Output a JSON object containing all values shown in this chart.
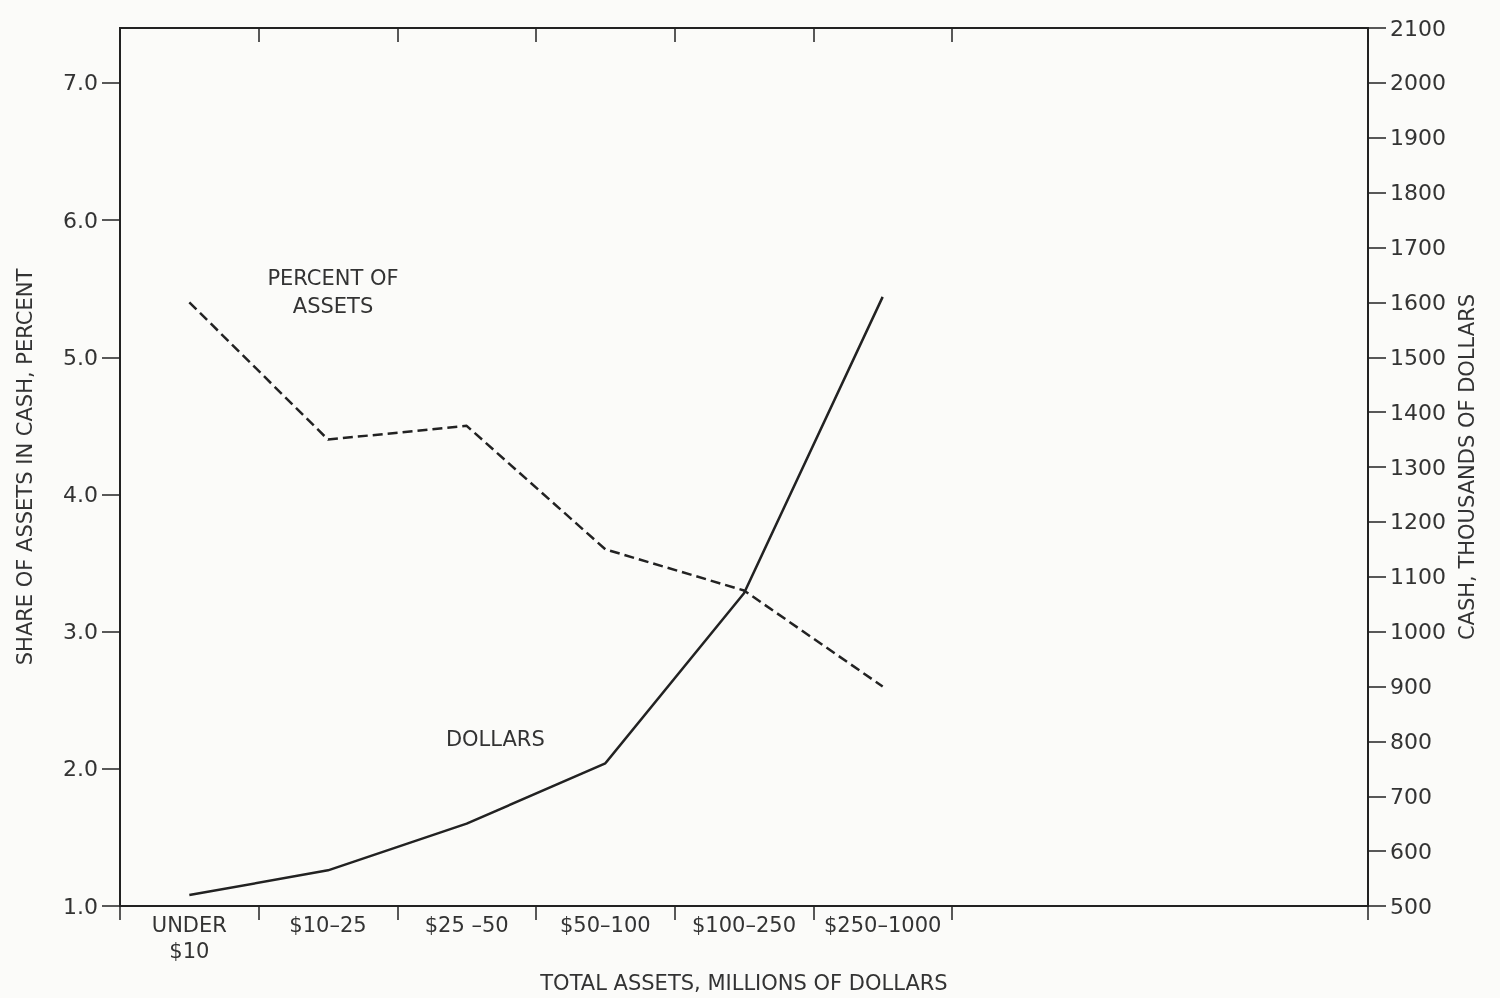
{
  "chart_data": {
    "type": "line",
    "xlabel": "TOTAL ASSETS, MILLIONS OF DOLLARS",
    "ylabel": "SHARE OF ASSETS IN CASH, PERCENT",
    "y2label": "CASH, THOUSANDS OF DOLLARS",
    "categories": [
      "UNDER\n$10",
      "$10–25",
      "$25 –50",
      "$50–100",
      "$100–250",
      "$250–1000",
      null,
      null,
      null
    ],
    "series": [
      {
        "name": "PERCENT OF\nASSETS",
        "color": "#222222",
        "line_style": "dashed",
        "values": [
          5.4,
          4.4,
          4.5,
          3.6,
          3.3,
          2.6,
          null,
          null,
          null
        ]
      },
      {
        "name": "DOLLARS",
        "color": "#222222",
        "line_style": "solid",
        "axis": "y2",
        "values": [
          520,
          565,
          650,
          760,
          1070,
          1610,
          null,
          null,
          null
        ]
      }
    ],
    "ylim": [
      1.0,
      7.4
    ],
    "yticks": [
      {
        "value": 1,
        "label": "1.0"
      },
      {
        "value": 2,
        "label": "2.0"
      },
      {
        "value": 3,
        "label": "3.0"
      },
      {
        "value": 4,
        "label": "4.0"
      },
      {
        "value": 5,
        "label": "5.0"
      },
      {
        "value": 6,
        "label": "6.0"
      },
      {
        "value": 7,
        "label": "7.0"
      }
    ],
    "y2lim": [
      500,
      2100
    ],
    "y2ticks": [
      500,
      600,
      700,
      800,
      900,
      1000,
      1100,
      1200,
      1300,
      1400,
      1500,
      1600,
      1700,
      1800,
      1900,
      2000,
      2100
    ],
    "marker": "none",
    "grid": false,
    "legend": false
  }
}
